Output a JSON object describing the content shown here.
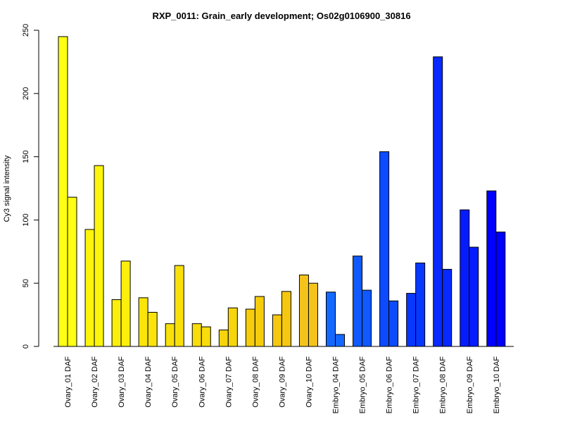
{
  "chart_data": {
    "type": "bar",
    "title": "RXP_0011: Grain_early development; Os02g0106900_30816",
    "xlabel": "",
    "ylabel": "Cy3 signal intensity",
    "ylim": [
      0,
      250
    ],
    "yticks": [
      "0",
      "50",
      "100",
      "150",
      "200",
      "250"
    ],
    "grid": false,
    "legend": "none",
    "categories": [
      "Ovary_01 DAF",
      "Ovary_02 DAF",
      "Ovary_03 DAF",
      "Ovary_04 DAF",
      "Ovary_05 DAF",
      "Ovary_06 DAF",
      "Ovary_07 DAF",
      "Ovary_08 DAF",
      "Ovary_09 DAF",
      "Ovary_10 DAF",
      "Embryo_04 DAF",
      "Embryo_05 DAF",
      "Embryo_06 DAF",
      "Embryo_07 DAF",
      "Embryo_08 DAF",
      "Embryo_09 DAF",
      "Embryo_10 DAF"
    ],
    "series": [
      {
        "values": [
          245,
          92.5,
          37,
          38.5,
          18,
          18,
          13,
          29.5,
          25,
          56.5,
          43,
          71.5,
          154,
          42,
          229,
          108,
          123
        ]
      },
      {
        "values": [
          118,
          143,
          67.5,
          27,
          64,
          15.5,
          30.5,
          39.5,
          43.5,
          50,
          9.5,
          44.5,
          36,
          66,
          61,
          78.5,
          90.5
        ]
      }
    ],
    "colors": [
      "#ffff14",
      "#fdf50c",
      "#fbef0b",
      "#fae40a",
      "#f9e00a",
      "#f8dc0b",
      "#f6d50c",
      "#f6cd0d",
      "#f5c70f",
      "#f5c41c",
      "#1568ff",
      "#1059ff",
      "#0c4bff",
      "#0838ff",
      "#0829ff",
      "#051cff",
      "#0000ff"
    ]
  }
}
